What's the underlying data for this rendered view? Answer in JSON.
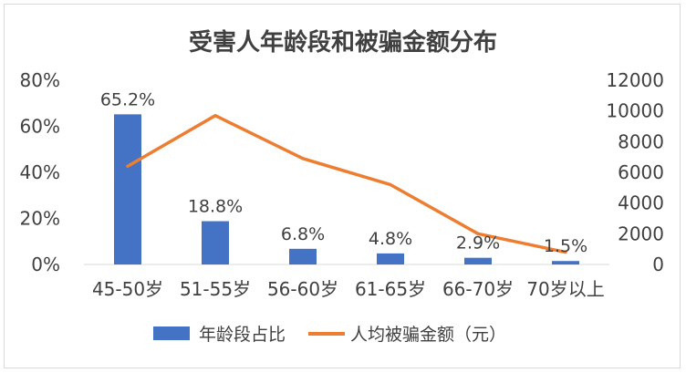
{
  "chart_data": {
    "type": "bar",
    "title": "受害人年龄段和被骗金额分布",
    "categories": [
      "45-50岁",
      "51-55岁",
      "56-60岁",
      "61-65岁",
      "66-70岁",
      "70岁以上"
    ],
    "series": [
      {
        "name": "年龄段占比",
        "type": "bar",
        "axis": "left",
        "color": "#4472C4",
        "values": [
          65.2,
          18.8,
          6.8,
          4.8,
          2.9,
          1.5
        ],
        "labels": [
          "65.2%",
          "18.8%",
          "6.8%",
          "4.8%",
          "2.9%",
          "1.5%"
        ]
      },
      {
        "name": "人均被骗金额（元）",
        "type": "line",
        "axis": "right",
        "color": "#ED7D31",
        "values": [
          6400,
          9700,
          6900,
          5200,
          2000,
          800
        ]
      }
    ],
    "y_left": {
      "range": [
        0,
        80
      ],
      "ticks": [
        "0%",
        "20%",
        "40%",
        "60%",
        "80%"
      ]
    },
    "y_right": {
      "range": [
        0,
        12000
      ],
      "ticks": [
        "0",
        "2000",
        "4000",
        "6000",
        "8000",
        "10000",
        "12000"
      ]
    },
    "legend_position": "bottom",
    "grid": false
  }
}
